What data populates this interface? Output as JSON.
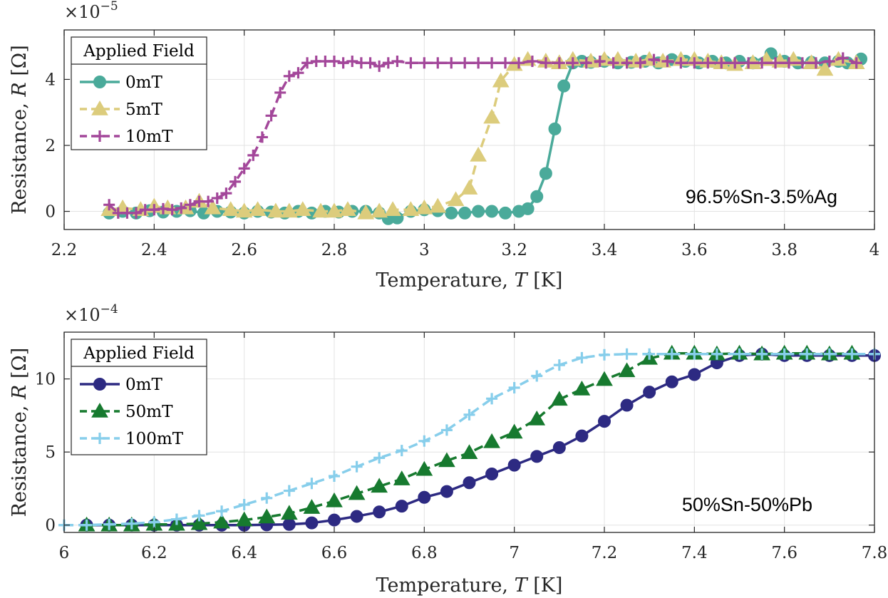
{
  "chart_data": [
    {
      "type": "line",
      "id": "top",
      "xlabel_main": "Temperature, ",
      "xlabel_var": "T",
      "xlabel_unit": " [K]",
      "ylabel_main": "Resistance, ",
      "ylabel_var": "R",
      "ylabel_unit": " [Ω]",
      "y_exponent_base": "×10",
      "y_exponent_power": "−5",
      "xlim": [
        2.2,
        4.0
      ],
      "ylim": [
        -0.55,
        5.5
      ],
      "xticks": [
        2.2,
        2.4,
        2.6,
        2.8,
        3.0,
        3.2,
        3.4,
        3.6,
        3.8,
        4.0
      ],
      "xtick_labels": [
        "2.2",
        "2.4",
        "2.6",
        "2.8",
        "3",
        "3.2",
        "3.4",
        "3.6",
        "3.8",
        "4"
      ],
      "yticks": [
        0,
        2,
        4
      ],
      "ytick_labels": [
        "0",
        "2",
        "4"
      ],
      "annotation": "96.5%Sn-3.5%Ag",
      "legend_title": "Applied Field",
      "legend_position": "top-left",
      "series": [
        {
          "name": "0mT",
          "color": "#4aaa9a",
          "marker": "circle",
          "dash": "solid",
          "x": [
            2.3,
            2.33,
            2.36,
            2.39,
            2.42,
            2.45,
            2.48,
            2.51,
            2.54,
            2.57,
            2.6,
            2.63,
            2.66,
            2.69,
            2.72,
            2.75,
            2.78,
            2.81,
            2.84,
            2.87,
            2.9,
            2.92,
            2.94,
            2.97,
            3.0,
            3.03,
            3.06,
            3.09,
            3.12,
            3.15,
            3.18,
            3.21,
            3.23,
            3.25,
            3.27,
            3.29,
            3.31,
            3.33,
            3.35,
            3.37,
            3.4,
            3.43,
            3.46,
            3.49,
            3.52,
            3.55,
            3.58,
            3.61,
            3.64,
            3.67,
            3.7,
            3.73,
            3.77,
            3.8,
            3.83,
            3.86,
            3.89,
            3.92,
            3.94,
            3.97
          ],
          "y": [
            -0.05,
            0.0,
            -0.05,
            0.02,
            -0.02,
            0.0,
            0.02,
            -0.05,
            0.0,
            -0.02,
            -0.05,
            0.0,
            -0.02,
            -0.05,
            0.0,
            -0.05,
            0.0,
            -0.02,
            0.0,
            0.0,
            -0.05,
            -0.22,
            -0.2,
            0.0,
            0.05,
            0.02,
            -0.05,
            -0.05,
            0.0,
            0.0,
            -0.05,
            0.0,
            0.08,
            0.45,
            1.15,
            2.5,
            3.8,
            4.5,
            4.55,
            4.52,
            4.55,
            4.5,
            4.52,
            4.55,
            4.5,
            4.6,
            4.55,
            4.5,
            4.55,
            4.5,
            4.55,
            4.5,
            4.78,
            4.55,
            4.5,
            4.52,
            4.5,
            4.55,
            4.5,
            4.62
          ]
        },
        {
          "name": "5mT",
          "color": "#dccc7c",
          "marker": "triangle",
          "dash": "dashed",
          "x": [
            2.3,
            2.33,
            2.37,
            2.4,
            2.43,
            2.47,
            2.5,
            2.53,
            2.57,
            2.6,
            2.63,
            2.67,
            2.7,
            2.73,
            2.77,
            2.8,
            2.83,
            2.87,
            2.9,
            2.93,
            2.97,
            3.0,
            3.03,
            3.07,
            3.1,
            3.12,
            3.15,
            3.17,
            3.2,
            3.23,
            3.27,
            3.3,
            3.33,
            3.37,
            3.4,
            3.43,
            3.47,
            3.5,
            3.53,
            3.57,
            3.6,
            3.63,
            3.66,
            3.69,
            3.73,
            3.76,
            3.79,
            3.82,
            3.86,
            3.89,
            3.92,
            3.96
          ],
          "y": [
            0.05,
            0.1,
            0.05,
            0.15,
            0.1,
            0.1,
            0.3,
            0.1,
            0.05,
            0.0,
            0.05,
            0.0,
            0.0,
            0.05,
            0.0,
            0.0,
            0.05,
            -0.05,
            0.0,
            0.05,
            0.05,
            0.1,
            0.15,
            0.35,
            0.7,
            1.7,
            2.85,
            3.95,
            4.45,
            4.6,
            4.55,
            4.5,
            4.6,
            4.55,
            4.6,
            4.6,
            4.55,
            4.6,
            4.55,
            4.6,
            4.6,
            4.55,
            4.5,
            4.45,
            4.5,
            4.6,
            4.55,
            4.6,
            4.5,
            4.3,
            4.6,
            4.5
          ]
        },
        {
          "name": "10mT",
          "color": "#a3479a",
          "marker": "plus",
          "dash": "dashed",
          "x": [
            2.3,
            2.32,
            2.34,
            2.36,
            2.38,
            2.4,
            2.42,
            2.44,
            2.46,
            2.48,
            2.5,
            2.52,
            2.54,
            2.56,
            2.58,
            2.6,
            2.62,
            2.64,
            2.66,
            2.68,
            2.7,
            2.72,
            2.74,
            2.76,
            2.78,
            2.8,
            2.82,
            2.84,
            2.86,
            2.88,
            2.9,
            2.92,
            2.94,
            2.97,
            3.0,
            3.03,
            3.06,
            3.09,
            3.12,
            3.15,
            3.18,
            3.21,
            3.24,
            3.27,
            3.3,
            3.33,
            3.36,
            3.39,
            3.42,
            3.45,
            3.48,
            3.51,
            3.54,
            3.57,
            3.6,
            3.63,
            3.66,
            3.69,
            3.72,
            3.75,
            3.78,
            3.81,
            3.84,
            3.87,
            3.9,
            3.93,
            3.96
          ],
          "y": [
            0.2,
            -0.05,
            -0.05,
            -0.05,
            0.05,
            0.05,
            0.08,
            0.05,
            0.1,
            0.2,
            0.3,
            0.3,
            0.4,
            0.55,
            0.9,
            1.3,
            1.7,
            2.25,
            2.9,
            3.6,
            4.1,
            4.2,
            4.5,
            4.55,
            4.55,
            4.55,
            4.5,
            4.55,
            4.5,
            4.5,
            4.4,
            4.5,
            4.55,
            4.5,
            4.5,
            4.5,
            4.5,
            4.5,
            4.5,
            4.5,
            4.5,
            4.5,
            4.55,
            4.5,
            4.5,
            4.5,
            4.5,
            4.55,
            4.5,
            4.5,
            4.5,
            4.6,
            4.55,
            4.5,
            4.5,
            4.5,
            4.5,
            4.5,
            4.5,
            4.5,
            4.5,
            4.5,
            4.5,
            4.5,
            4.55,
            4.65,
            4.5
          ]
        }
      ]
    },
    {
      "type": "line",
      "id": "bottom",
      "xlabel_main": "Temperature, ",
      "xlabel_var": "T",
      "xlabel_unit": " [K]",
      "ylabel_main": "Resistance, ",
      "ylabel_var": "R",
      "ylabel_unit": " [Ω]",
      "y_exponent_base": "×10",
      "y_exponent_power": "−4",
      "xlim": [
        6.0,
        7.8
      ],
      "ylim": [
        -0.5,
        13.2
      ],
      "xticks": [
        6.0,
        6.2,
        6.4,
        6.6,
        6.8,
        7.0,
        7.2,
        7.4,
        7.6,
        7.8
      ],
      "xtick_labels": [
        "6",
        "6.2",
        "6.4",
        "6.6",
        "6.8",
        "7",
        "7.2",
        "7.4",
        "7.6",
        "7.8"
      ],
      "yticks": [
        0,
        5,
        10
      ],
      "ytick_labels": [
        "0",
        "5",
        "10"
      ],
      "annotation": "50%Sn-50%Pb",
      "legend_title": "Applied Field",
      "legend_position": "top-left",
      "series": [
        {
          "name": "0mT",
          "color": "#2d2a82",
          "marker": "circle",
          "dash": "solid",
          "x": [
            6.05,
            6.1,
            6.15,
            6.2,
            6.25,
            6.3,
            6.35,
            6.4,
            6.45,
            6.5,
            6.55,
            6.6,
            6.65,
            6.7,
            6.75,
            6.8,
            6.85,
            6.9,
            6.95,
            7.0,
            7.05,
            7.1,
            7.15,
            7.2,
            7.25,
            7.3,
            7.35,
            7.4,
            7.45,
            7.5,
            7.55,
            7.6,
            7.65,
            7.7,
            7.75,
            7.8
          ],
          "y": [
            0.0,
            0.0,
            0.0,
            0.0,
            0.0,
            0.0,
            0.0,
            0.0,
            0.02,
            0.05,
            0.15,
            0.35,
            0.6,
            0.9,
            1.3,
            1.9,
            2.3,
            2.9,
            3.5,
            4.1,
            4.7,
            5.3,
            6.1,
            7.1,
            8.2,
            9.1,
            9.8,
            10.3,
            11.1,
            11.6,
            11.7,
            11.6,
            11.6,
            11.6,
            11.6,
            11.6
          ]
        },
        {
          "name": "50mT",
          "color": "#177a2f",
          "marker": "triangle",
          "dash": "dashed",
          "x": [
            6.05,
            6.1,
            6.15,
            6.2,
            6.25,
            6.3,
            6.35,
            6.4,
            6.45,
            6.5,
            6.55,
            6.6,
            6.65,
            6.7,
            6.75,
            6.8,
            6.85,
            6.9,
            6.95,
            7.0,
            7.05,
            7.1,
            7.15,
            7.2,
            7.25,
            7.3,
            7.35,
            7.4,
            7.45,
            7.5,
            7.55,
            7.6,
            7.65,
            7.7,
            7.75
          ],
          "y": [
            0.0,
            0.0,
            0.0,
            0.05,
            0.05,
            0.1,
            0.2,
            0.35,
            0.55,
            0.8,
            1.2,
            1.65,
            2.15,
            2.65,
            3.15,
            3.8,
            4.4,
            4.95,
            5.7,
            6.35,
            7.25,
            8.6,
            9.3,
            9.95,
            10.55,
            11.4,
            11.75,
            11.75,
            11.7,
            11.75,
            11.7,
            11.75,
            11.75,
            11.7,
            11.75
          ]
        },
        {
          "name": "100mT",
          "color": "#87ceeb",
          "marker": "plus",
          "dash": "dashed",
          "x": [
            6.0,
            6.05,
            6.1,
            6.15,
            6.2,
            6.25,
            6.3,
            6.35,
            6.4,
            6.45,
            6.5,
            6.55,
            6.6,
            6.65,
            6.7,
            6.75,
            6.8,
            6.85,
            6.9,
            6.95,
            7.0,
            7.05,
            7.1,
            7.15,
            7.2,
            7.25,
            7.3,
            7.35,
            7.4,
            7.45,
            7.5,
            7.55,
            7.6,
            7.65,
            7.7,
            7.75,
            7.8
          ],
          "y": [
            0.0,
            0.0,
            0.05,
            0.1,
            0.2,
            0.4,
            0.65,
            0.95,
            1.4,
            1.85,
            2.35,
            2.85,
            3.35,
            4.0,
            4.6,
            5.1,
            5.75,
            6.5,
            7.55,
            8.65,
            9.4,
            10.2,
            10.95,
            11.45,
            11.65,
            11.7,
            11.7,
            11.7,
            11.7,
            11.7,
            11.7,
            11.7,
            11.7,
            11.7,
            11.7,
            11.7,
            11.7
          ]
        }
      ]
    }
  ]
}
